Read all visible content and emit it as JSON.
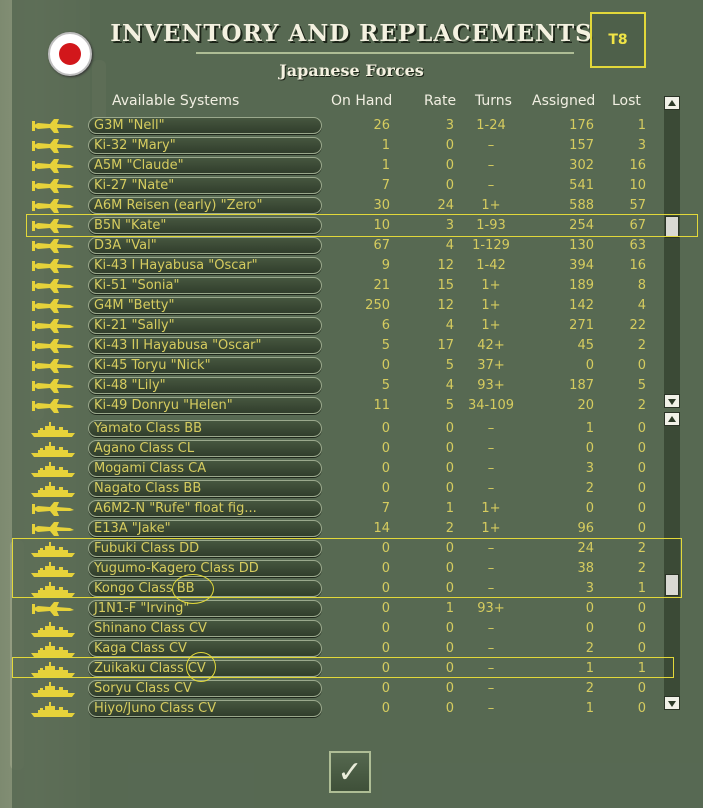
{
  "title": "INVENTORY AND REPLACEMENTS",
  "subtitle": "Japanese Forces",
  "turn_badge": "T8",
  "columns": {
    "system": "Available Systems",
    "on_hand": "On Hand",
    "rate": "Rate",
    "turns": "Turns",
    "assigned": "Assigned",
    "lost": "Lost"
  },
  "aircraft_rows": [
    {
      "name": "G3M \"Nell\"",
      "on_hand": "26",
      "rate": "3",
      "turns": "1-24",
      "assigned": "176",
      "lost": "1"
    },
    {
      "name": "Ki-32 \"Mary\"",
      "on_hand": "1",
      "rate": "0",
      "turns": "–",
      "assigned": "157",
      "lost": "3"
    },
    {
      "name": "A5M \"Claude\"",
      "on_hand": "1",
      "rate": "0",
      "turns": "–",
      "assigned": "302",
      "lost": "16"
    },
    {
      "name": "Ki-27 \"Nate\"",
      "on_hand": "7",
      "rate": "0",
      "turns": "–",
      "assigned": "541",
      "lost": "10"
    },
    {
      "name": "A6M Reisen (early) \"Zero\"",
      "on_hand": "30",
      "rate": "24",
      "turns": "1+",
      "assigned": "588",
      "lost": "57"
    },
    {
      "name": "B5N \"Kate\"",
      "on_hand": "10",
      "rate": "3",
      "turns": "1-93",
      "assigned": "254",
      "lost": "67"
    },
    {
      "name": "D3A \"Val\"",
      "on_hand": "67",
      "rate": "4",
      "turns": "1-129",
      "assigned": "130",
      "lost": "63"
    },
    {
      "name": "Ki-43 I Hayabusa \"Oscar\"",
      "on_hand": "9",
      "rate": "12",
      "turns": "1-42",
      "assigned": "394",
      "lost": "16"
    },
    {
      "name": "Ki-51 \"Sonia\"",
      "on_hand": "21",
      "rate": "15",
      "turns": "1+",
      "assigned": "189",
      "lost": "8"
    },
    {
      "name": "G4M \"Betty\"",
      "on_hand": "250",
      "rate": "12",
      "turns": "1+",
      "assigned": "142",
      "lost": "4"
    },
    {
      "name": "Ki-21 \"Sally\"",
      "on_hand": "6",
      "rate": "4",
      "turns": "1+",
      "assigned": "271",
      "lost": "22"
    },
    {
      "name": "Ki-43 II Hayabusa \"Oscar\"",
      "on_hand": "5",
      "rate": "17",
      "turns": "42+",
      "assigned": "45",
      "lost": "2"
    },
    {
      "name": "Ki-45 Toryu \"Nick\"",
      "on_hand": "0",
      "rate": "5",
      "turns": "37+",
      "assigned": "0",
      "lost": "0"
    },
    {
      "name": "Ki-48 \"Lily\"",
      "on_hand": "5",
      "rate": "4",
      "turns": "93+",
      "assigned": "187",
      "lost": "5"
    },
    {
      "name": "Ki-49 Donryu \"Helen\"",
      "on_hand": "11",
      "rate": "5",
      "turns": "34-109",
      "assigned": "20",
      "lost": "2"
    }
  ],
  "ship_rows": [
    {
      "name": "Yamato Class BB",
      "kind": "ship",
      "on_hand": "0",
      "rate": "0",
      "turns": "–",
      "assigned": "1",
      "lost": "0"
    },
    {
      "name": "Agano Class CL",
      "kind": "ship",
      "on_hand": "0",
      "rate": "0",
      "turns": "–",
      "assigned": "0",
      "lost": "0"
    },
    {
      "name": "Mogami Class CA",
      "kind": "ship",
      "on_hand": "0",
      "rate": "0",
      "turns": "–",
      "assigned": "3",
      "lost": "0"
    },
    {
      "name": "Nagato Class BB",
      "kind": "ship",
      "on_hand": "0",
      "rate": "0",
      "turns": "–",
      "assigned": "2",
      "lost": "0"
    },
    {
      "name": "A6M2-N \"Rufe\" float fig...",
      "kind": "plane",
      "on_hand": "7",
      "rate": "1",
      "turns": "1+",
      "assigned": "0",
      "lost": "0"
    },
    {
      "name": "E13A \"Jake\"",
      "kind": "plane",
      "on_hand": "14",
      "rate": "2",
      "turns": "1+",
      "assigned": "96",
      "lost": "0"
    },
    {
      "name": "Fubuki Class DD",
      "kind": "ship",
      "on_hand": "0",
      "rate": "0",
      "turns": "–",
      "assigned": "24",
      "lost": "2"
    },
    {
      "name": "Yugumo-Kagero Class DD",
      "kind": "ship",
      "on_hand": "0",
      "rate": "0",
      "turns": "–",
      "assigned": "38",
      "lost": "2"
    },
    {
      "name": "Kongo Class BB",
      "kind": "ship",
      "on_hand": "0",
      "rate": "0",
      "turns": "–",
      "assigned": "3",
      "lost": "1"
    },
    {
      "name": "J1N1-F \"Irving\"",
      "kind": "plane",
      "on_hand": "0",
      "rate": "1",
      "turns": "93+",
      "assigned": "0",
      "lost": "0"
    },
    {
      "name": "Shinano Class CV",
      "kind": "ship",
      "on_hand": "0",
      "rate": "0",
      "turns": "–",
      "assigned": "0",
      "lost": "0"
    },
    {
      "name": "Kaga Class CV",
      "kind": "ship",
      "on_hand": "0",
      "rate": "0",
      "turns": "–",
      "assigned": "2",
      "lost": "0"
    },
    {
      "name": "Zuikaku Class CV",
      "kind": "ship",
      "on_hand": "0",
      "rate": "0",
      "turns": "–",
      "assigned": "1",
      "lost": "1"
    },
    {
      "name": "Soryu Class CV",
      "kind": "ship",
      "on_hand": "0",
      "rate": "0",
      "turns": "–",
      "assigned": "2",
      "lost": "0"
    },
    {
      "name": "Hiyo/Juno Class CV",
      "kind": "ship",
      "on_hand": "0",
      "rate": "0",
      "turns": "–",
      "assigned": "1",
      "lost": "0"
    }
  ],
  "colors": {
    "accent_yellow": "#e2d83a",
    "text_yellow": "#d6cc5f",
    "flag_red": "#d2171b"
  },
  "icons": {
    "aircraft": "aircraft-silhouette-icon",
    "ship": "warship-silhouette-icon",
    "confirm": "checkmark-icon"
  }
}
